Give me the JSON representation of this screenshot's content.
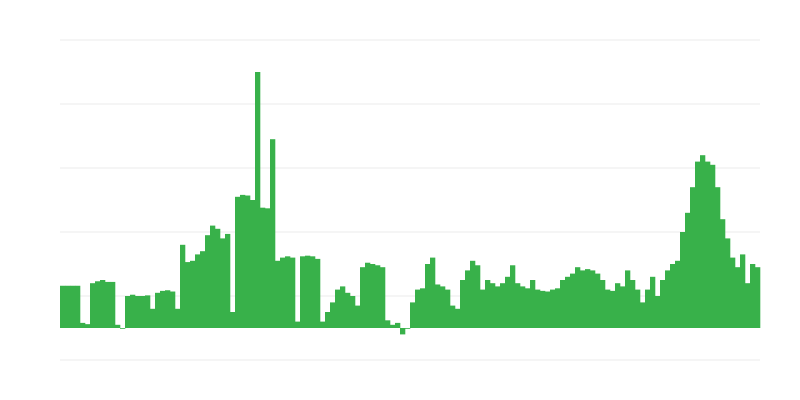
{
  "chart_data": {
    "type": "bar",
    "title": "",
    "xlabel": "",
    "ylabel": "",
    "ylim": [
      -0.5,
      4.5
    ],
    "gridlines_y": [
      -0.5,
      0.5,
      1.5,
      2.5,
      3.5,
      4.5
    ],
    "grid": true,
    "color": "#38b14a",
    "grid_color": "#ebebeb",
    "values": [
      0.66,
      0.66,
      0.66,
      0.66,
      0.08,
      0.06,
      0.7,
      0.73,
      0.75,
      0.72,
      0.72,
      0.05,
      0.0,
      0.5,
      0.52,
      0.5,
      0.5,
      0.51,
      0.3,
      0.55,
      0.58,
      0.59,
      0.57,
      0.3,
      1.3,
      1.03,
      1.05,
      1.15,
      1.2,
      1.45,
      1.6,
      1.55,
      1.4,
      1.47,
      0.25,
      2.05,
      2.08,
      2.07,
      2.0,
      4.0,
      1.88,
      1.87,
      2.95,
      1.05,
      1.1,
      1.12,
      1.1,
      0.1,
      1.12,
      1.13,
      1.12,
      1.08,
      0.1,
      0.25,
      0.4,
      0.6,
      0.65,
      0.55,
      0.5,
      0.35,
      0.95,
      1.02,
      1.0,
      0.98,
      0.95,
      0.12,
      0.05,
      0.08,
      -0.1,
      0.0,
      0.4,
      0.6,
      0.62,
      1.0,
      1.1,
      0.68,
      0.65,
      0.6,
      0.35,
      0.3,
      0.75,
      0.9,
      1.05,
      0.98,
      0.6,
      0.75,
      0.7,
      0.65,
      0.7,
      0.8,
      0.98,
      0.7,
      0.65,
      0.62,
      0.75,
      0.6,
      0.58,
      0.57,
      0.6,
      0.62,
      0.75,
      0.8,
      0.85,
      0.95,
      0.9,
      0.92,
      0.9,
      0.85,
      0.75,
      0.6,
      0.58,
      0.7,
      0.65,
      0.9,
      0.75,
      0.6,
      0.4,
      0.6,
      0.8,
      0.5,
      0.75,
      0.9,
      1.0,
      1.05,
      1.5,
      1.8,
      2.2,
      2.6,
      2.7,
      2.6,
      2.55,
      2.2,
      1.7,
      1.4,
      1.1,
      0.95,
      1.15,
      0.7,
      1.0,
      0.95
    ]
  }
}
